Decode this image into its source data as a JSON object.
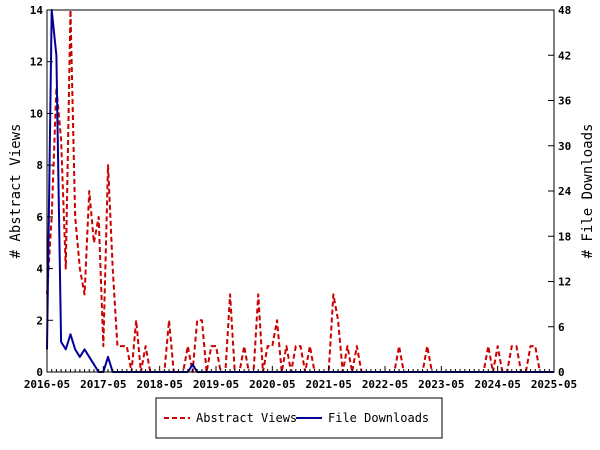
{
  "chart_data": {
    "type": "line",
    "ylabel": "# Abstract Views",
    "y2label": "# File Downloads",
    "ylim": [
      0,
      14
    ],
    "y2lim": [
      0,
      48
    ],
    "yticks": [
      0,
      2,
      4,
      6,
      8,
      10,
      12,
      14
    ],
    "y2ticks": [
      0,
      6,
      12,
      18,
      24,
      30,
      36,
      42,
      48
    ],
    "xlim": [
      "2016-05",
      "2025-05"
    ],
    "xtick_labels": [
      "2016-05",
      "2017-05",
      "2018-05",
      "2019-05",
      "2020-05",
      "2021-05",
      "2022-05",
      "2023-05",
      "2024-05",
      "2025-05"
    ],
    "grid": false,
    "legend_position": "bottom-center",
    "series": [
      {
        "name": "Abstract Views",
        "axis": "left",
        "color": "#cc0000",
        "style": "dashed",
        "points": [
          [
            "2016-05",
            3
          ],
          [
            "2016-06",
            6
          ],
          [
            "2016-07",
            11
          ],
          [
            "2016-08",
            9
          ],
          [
            "2016-09",
            4
          ],
          [
            "2016-10",
            14
          ],
          [
            "2016-11",
            6
          ],
          [
            "2016-12",
            4
          ],
          [
            "2017-01",
            3
          ],
          [
            "2017-02",
            7
          ],
          [
            "2017-03",
            5
          ],
          [
            "2017-04",
            6
          ],
          [
            "2017-05",
            1
          ],
          [
            "2017-06",
            8
          ],
          [
            "2017-07",
            4
          ],
          [
            "2017-08",
            1
          ],
          [
            "2017-09",
            1
          ],
          [
            "2017-10",
            1
          ],
          [
            "2017-11",
            0
          ],
          [
            "2017-12",
            2
          ],
          [
            "2018-01",
            0
          ],
          [
            "2018-02",
            1
          ],
          [
            "2018-03",
            0
          ],
          [
            "2018-04",
            0
          ],
          [
            "2018-05",
            0
          ],
          [
            "2018-06",
            0
          ],
          [
            "2018-07",
            2
          ],
          [
            "2018-08",
            0
          ],
          [
            "2018-09",
            0
          ],
          [
            "2018-10",
            0
          ],
          [
            "2018-11",
            1
          ],
          [
            "2018-12",
            0
          ],
          [
            "2019-01",
            2
          ],
          [
            "2019-02",
            2
          ],
          [
            "2019-03",
            0
          ],
          [
            "2019-04",
            1
          ],
          [
            "2019-05",
            1
          ],
          [
            "2019-06",
            0
          ],
          [
            "2019-07",
            0
          ],
          [
            "2019-08",
            3
          ],
          [
            "2019-09",
            0
          ],
          [
            "2019-10",
            0
          ],
          [
            "2019-11",
            1
          ],
          [
            "2019-12",
            0
          ],
          [
            "2020-01",
            0
          ],
          [
            "2020-02",
            3
          ],
          [
            "2020-03",
            0
          ],
          [
            "2020-04",
            1
          ],
          [
            "2020-05",
            1
          ],
          [
            "2020-06",
            2
          ],
          [
            "2020-07",
            0
          ],
          [
            "2020-08",
            1
          ],
          [
            "2020-09",
            0
          ],
          [
            "2020-10",
            1
          ],
          [
            "2020-11",
            1
          ],
          [
            "2020-12",
            0
          ],
          [
            "2021-01",
            1
          ],
          [
            "2021-02",
            0
          ],
          [
            "2021-03",
            0
          ],
          [
            "2021-04",
            0
          ],
          [
            "2021-05",
            0
          ],
          [
            "2021-06",
            3
          ],
          [
            "2021-07",
            2
          ],
          [
            "2021-08",
            0
          ],
          [
            "2021-09",
            1
          ],
          [
            "2021-10",
            0
          ],
          [
            "2021-11",
            1
          ],
          [
            "2021-12",
            0
          ],
          [
            "2022-01",
            0
          ],
          [
            "2022-02",
            0
          ],
          [
            "2022-03",
            0
          ],
          [
            "2022-04",
            0
          ],
          [
            "2022-05",
            0
          ],
          [
            "2022-06",
            0
          ],
          [
            "2022-07",
            0
          ],
          [
            "2022-08",
            1
          ],
          [
            "2022-09",
            0
          ],
          [
            "2022-10",
            0
          ],
          [
            "2022-11",
            0
          ],
          [
            "2022-12",
            0
          ],
          [
            "2023-01",
            0
          ],
          [
            "2023-02",
            1
          ],
          [
            "2023-03",
            0
          ],
          [
            "2023-04",
            0
          ],
          [
            "2023-05",
            0
          ],
          [
            "2023-06",
            0
          ],
          [
            "2023-07",
            0
          ],
          [
            "2023-08",
            0
          ],
          [
            "2023-09",
            0
          ],
          [
            "2023-10",
            0
          ],
          [
            "2023-11",
            0
          ],
          [
            "2023-12",
            0
          ],
          [
            "2024-01",
            0
          ],
          [
            "2024-02",
            0
          ],
          [
            "2024-03",
            1
          ],
          [
            "2024-04",
            0
          ],
          [
            "2024-05",
            1
          ],
          [
            "2024-06",
            0
          ],
          [
            "2024-07",
            0
          ],
          [
            "2024-08",
            1
          ],
          [
            "2024-09",
            1
          ],
          [
            "2024-10",
            0
          ],
          [
            "2024-11",
            0
          ],
          [
            "2024-12",
            1
          ],
          [
            "2025-01",
            1
          ],
          [
            "2025-02",
            0
          ],
          [
            "2025-03",
            0
          ],
          [
            "2025-04",
            0
          ],
          [
            "2025-05",
            0
          ]
        ]
      },
      {
        "name": "File Downloads",
        "axis": "right",
        "color": "#000099",
        "style": "solid",
        "points": [
          [
            "2016-05",
            3
          ],
          [
            "2016-06",
            48
          ],
          [
            "2016-07",
            42
          ],
          [
            "2016-08",
            4
          ],
          [
            "2016-09",
            3
          ],
          [
            "2016-10",
            5
          ],
          [
            "2016-11",
            3
          ],
          [
            "2016-12",
            2
          ],
          [
            "2017-01",
            3
          ],
          [
            "2017-02",
            2
          ],
          [
            "2017-03",
            1
          ],
          [
            "2017-04",
            0
          ],
          [
            "2017-05",
            0
          ],
          [
            "2017-06",
            2
          ],
          [
            "2017-07",
            0
          ],
          [
            "2017-08",
            0
          ],
          [
            "2017-09",
            0
          ],
          [
            "2017-10",
            0
          ],
          [
            "2017-11",
            0
          ],
          [
            "2017-12",
            0
          ],
          [
            "2018-01",
            0
          ],
          [
            "2018-02",
            0
          ],
          [
            "2018-03",
            0
          ],
          [
            "2018-04",
            0
          ],
          [
            "2018-05",
            0
          ],
          [
            "2018-06",
            0
          ],
          [
            "2018-07",
            0
          ],
          [
            "2018-08",
            0
          ],
          [
            "2018-09",
            0
          ],
          [
            "2018-10",
            0
          ],
          [
            "2018-11",
            0
          ],
          [
            "2018-12",
            1
          ],
          [
            "2019-01",
            0
          ],
          [
            "2019-02",
            0
          ],
          [
            "2019-03",
            0
          ],
          [
            "2019-04",
            0
          ],
          [
            "2019-05",
            0
          ],
          [
            "2019-06",
            0
          ],
          [
            "2019-07",
            0
          ],
          [
            "2019-08",
            0
          ],
          [
            "2019-09",
            0
          ],
          [
            "2019-10",
            0
          ],
          [
            "2019-11",
            0
          ],
          [
            "2019-12",
            0
          ],
          [
            "2020-01",
            0
          ],
          [
            "2020-02",
            0
          ],
          [
            "2020-03",
            0
          ],
          [
            "2020-04",
            0
          ],
          [
            "2020-05",
            0
          ],
          [
            "2020-06",
            0
          ],
          [
            "2020-07",
            0
          ],
          [
            "2020-08",
            0
          ],
          [
            "2020-09",
            0
          ],
          [
            "2020-10",
            0
          ],
          [
            "2020-11",
            0
          ],
          [
            "2020-12",
            0
          ],
          [
            "2021-01",
            0
          ],
          [
            "2021-02",
            0
          ],
          [
            "2021-03",
            0
          ],
          [
            "2021-04",
            0
          ],
          [
            "2021-05",
            0
          ],
          [
            "2021-06",
            0
          ],
          [
            "2021-07",
            0
          ],
          [
            "2021-08",
            0
          ],
          [
            "2021-09",
            0
          ],
          [
            "2021-10",
            0
          ],
          [
            "2021-11",
            0
          ],
          [
            "2021-12",
            0
          ],
          [
            "2022-01",
            0
          ],
          [
            "2022-02",
            0
          ],
          [
            "2022-03",
            0
          ],
          [
            "2022-04",
            0
          ],
          [
            "2022-05",
            0
          ],
          [
            "2022-06",
            0
          ],
          [
            "2022-07",
            0
          ],
          [
            "2022-08",
            0
          ],
          [
            "2022-09",
            0
          ],
          [
            "2022-10",
            0
          ],
          [
            "2022-11",
            0
          ],
          [
            "2022-12",
            0
          ],
          [
            "2023-01",
            0
          ],
          [
            "2023-02",
            0
          ],
          [
            "2023-03",
            0
          ],
          [
            "2023-04",
            0
          ],
          [
            "2023-05",
            0
          ],
          [
            "2023-06",
            0
          ],
          [
            "2023-07",
            0
          ],
          [
            "2023-08",
            0
          ],
          [
            "2023-09",
            0
          ],
          [
            "2023-10",
            0
          ],
          [
            "2023-11",
            0
          ],
          [
            "2023-12",
            0
          ],
          [
            "2024-01",
            0
          ],
          [
            "2024-02",
            0
          ],
          [
            "2024-03",
            0
          ],
          [
            "2024-04",
            0
          ],
          [
            "2024-05",
            0
          ],
          [
            "2024-06",
            0
          ],
          [
            "2024-07",
            0
          ],
          [
            "2024-08",
            0
          ],
          [
            "2024-09",
            0
          ],
          [
            "2024-10",
            0
          ],
          [
            "2024-11",
            0
          ],
          [
            "2024-12",
            0
          ],
          [
            "2025-01",
            0
          ],
          [
            "2025-02",
            0
          ],
          [
            "2025-03",
            0
          ],
          [
            "2025-04",
            0
          ],
          [
            "2025-05",
            0
          ]
        ]
      }
    ]
  }
}
